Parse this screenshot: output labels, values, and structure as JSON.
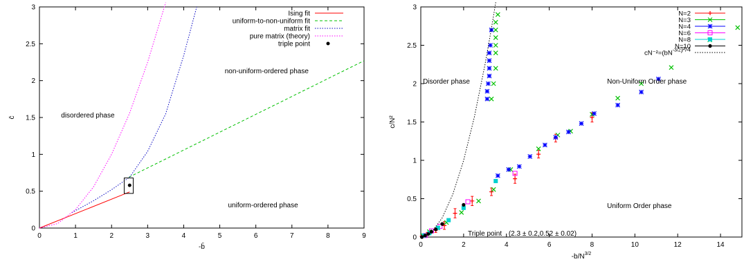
{
  "chart_data": [
    {
      "type": "line",
      "title": "",
      "xlabel": "-b̄",
      "ylabel": "c̄",
      "xlim": [
        0,
        9
      ],
      "ylim": [
        0,
        3
      ],
      "xticks": [
        "0",
        "1",
        "2",
        "3",
        "4",
        "5",
        "6",
        "7",
        "8",
        "9"
      ],
      "yticks": [
        "0",
        "0.5",
        "1",
        "1.5",
        "2",
        "2.5",
        "3"
      ],
      "grid": false,
      "legend_position": "top-right",
      "legend": [
        {
          "label": "Ising fit",
          "color": "#ff0000",
          "style": "solid"
        },
        {
          "label": "uniform-to-non-uniform fit",
          "color": "#00c000",
          "style": "dashed"
        },
        {
          "label": "matrix fit",
          "color": "#0000c0",
          "style": "dotted"
        },
        {
          "label": "pure matrix (theory)",
          "color": "#ff00ff",
          "style": "dotted"
        },
        {
          "label": "triple point",
          "color": "#000000",
          "style": "point"
        }
      ],
      "series": [
        {
          "name": "Ising fit",
          "color": "#ff0000",
          "x": [
            0,
            2.5
          ],
          "y": [
            0,
            0.49
          ]
        },
        {
          "name": "uniform-to-non-uniform fit",
          "color": "#00c000",
          "x": [
            2.48,
            9.0
          ],
          "y": [
            0.69,
            2.27
          ]
        },
        {
          "name": "matrix fit",
          "color": "#0000c0",
          "x": [
            0.9,
            1.5,
            2.0,
            2.5,
            3.0,
            3.5,
            4.0,
            4.36
          ],
          "y": [
            0.21,
            0.37,
            0.52,
            0.69,
            1.04,
            1.55,
            2.34,
            3.0
          ]
        },
        {
          "name": "pure matrix (theory)",
          "color": "#ff00ff",
          "x": [
            0,
            0.5,
            1.0,
            1.5,
            2.0,
            2.5,
            3.0,
            3.5
          ],
          "y": [
            0,
            0.06,
            0.25,
            0.56,
            1.0,
            1.56,
            2.25,
            3.06
          ]
        },
        {
          "name": "triple point",
          "color": "#000000",
          "x": [
            2.5
          ],
          "y": [
            0.58
          ]
        }
      ],
      "triple_point_box": {
        "x": [
          2.35,
          2.6
        ],
        "y": [
          0.47,
          0.68
        ]
      },
      "annotations": [
        {
          "text": "disordered phase",
          "x": 0.6,
          "y": 1.5
        },
        {
          "text": "non-uniform-ordered phase",
          "x": 6.3,
          "y": 2.1
        },
        {
          "text": "uniform-ordered phase",
          "x": 6.2,
          "y": 0.28
        }
      ]
    },
    {
      "type": "scatter",
      "title": "",
      "xlabel": "-b/N^{3/2}",
      "ylabel": "c/N²",
      "xlim": [
        0,
        15
      ],
      "ylim": [
        0,
        3
      ],
      "xticks": [
        "0",
        "2",
        "4",
        "6",
        "8",
        "10",
        "12",
        "14"
      ],
      "yticks": [
        "0",
        "0.5",
        "1",
        "1.5",
        "2",
        "2.5",
        "3"
      ],
      "grid": false,
      "legend_position": "top-right",
      "legend": [
        {
          "label": "N=2",
          "color": "#ff0000"
        },
        {
          "label": "N=3",
          "color": "#00c000"
        },
        {
          "label": "N=4",
          "color": "#0000ff"
        },
        {
          "label": "N=6",
          "color": "#ff00ff"
        },
        {
          "label": "N=8",
          "color": "#00d0d0"
        },
        {
          "label": "N=10",
          "color": "#000000"
        },
        {
          "label": "cN⁻²=(bN^{-3/2})²/4",
          "color": "#000000"
        }
      ],
      "series": [
        {
          "name": "N=2",
          "color": "#ff0000",
          "marker": "plus",
          "x": [
            0.05,
            0.3,
            0.7,
            1.1,
            1.6,
            2.4,
            3.3,
            4.4,
            5.5,
            6.3,
            8.0
          ],
          "y": [
            0.01,
            0.04,
            0.09,
            0.15,
            0.31,
            0.47,
            0.59,
            0.76,
            1.08,
            1.29,
            1.56
          ],
          "err": [
            0.01,
            0.02,
            0.03,
            0.05,
            0.06,
            0.06,
            0.05,
            0.06,
            0.05,
            0.05,
            0.06
          ]
        },
        {
          "name": "N=3",
          "color": "#00c000",
          "marker": "x",
          "x": [
            0.1,
            0.4,
            0.8,
            1.2,
            1.9,
            2.7,
            3.4,
            4.2,
            5.5,
            6.4,
            7.0,
            8.0,
            9.2,
            10.3,
            11.7,
            13.5,
            14.8,
            3.3,
            3.4,
            3.5,
            3.5,
            3.5,
            3.5,
            3.5,
            3.5,
            3.6
          ],
          "y": [
            0.02,
            0.07,
            0.12,
            0.19,
            0.32,
            0.47,
            0.62,
            0.88,
            1.15,
            1.33,
            1.38,
            1.6,
            1.81,
            2.0,
            2.21,
            2.57,
            2.73,
            1.8,
            2.0,
            2.2,
            2.4,
            2.5,
            2.6,
            2.7,
            2.8,
            2.9
          ]
        },
        {
          "name": "N=4",
          "color": "#0000ff",
          "marker": "star",
          "x": [
            3.6,
            4.1,
            4.6,
            5.1,
            5.8,
            6.3,
            6.9,
            7.5,
            8.1,
            9.2,
            10.3,
            11.1,
            3.1,
            3.1,
            3.15,
            3.2,
            3.2,
            3.2,
            3.2,
            3.25,
            3.3
          ],
          "y": [
            0.8,
            0.88,
            0.92,
            1.05,
            1.2,
            1.3,
            1.37,
            1.48,
            1.61,
            1.72,
            1.89,
            2.06,
            1.8,
            1.9,
            2.0,
            2.1,
            2.2,
            2.3,
            2.4,
            2.5,
            2.7
          ]
        },
        {
          "name": "N=6",
          "color": "#ff00ff",
          "marker": "square",
          "x": [
            0.2,
            0.5,
            0.9,
            2.2,
            4.4
          ],
          "y": [
            0.02,
            0.08,
            0.14,
            0.46,
            0.83
          ]
        },
        {
          "name": "N=8",
          "color": "#00d0d0",
          "marker": "filled-square",
          "x": [
            0.15,
            0.4,
            0.8,
            1.3,
            2.0,
            3.5
          ],
          "y": [
            0.02,
            0.05,
            0.12,
            0.22,
            0.38,
            0.73
          ]
        },
        {
          "name": "N=10",
          "color": "#000000",
          "marker": "filled-circle",
          "x": [
            0.05,
            0.2,
            0.35,
            0.5,
            0.7,
            1.0,
            2.0
          ],
          "y": [
            0.0,
            0.02,
            0.04,
            0.07,
            0.1,
            0.17,
            0.42
          ]
        },
        {
          "name": "cN⁻²=(bN^{-3/2})²/4",
          "color": "#000000",
          "style": "dotted",
          "x": [
            0,
            0.5,
            1.0,
            1.5,
            2.0,
            2.5,
            3.0,
            3.3,
            3.5
          ],
          "y": [
            0,
            0.06,
            0.25,
            0.56,
            1.0,
            1.56,
            2.25,
            2.72,
            3.06
          ]
        }
      ],
      "annotations": [
        {
          "text": "Disorder phase",
          "x": 0.1,
          "y": 2.0
        },
        {
          "text": "Non-Uniform Order phase",
          "x": 8.7,
          "y": 2.0
        },
        {
          "text": "Uniform Order phase",
          "x": 8.7,
          "y": 0.38
        },
        {
          "text": "Triple point",
          "x": 2.2,
          "y": 0.02
        },
        {
          "text": "(2.3 ± 0.2,0.52 ± 0.02)",
          "x": 4.1,
          "y": 0.02
        }
      ]
    }
  ]
}
